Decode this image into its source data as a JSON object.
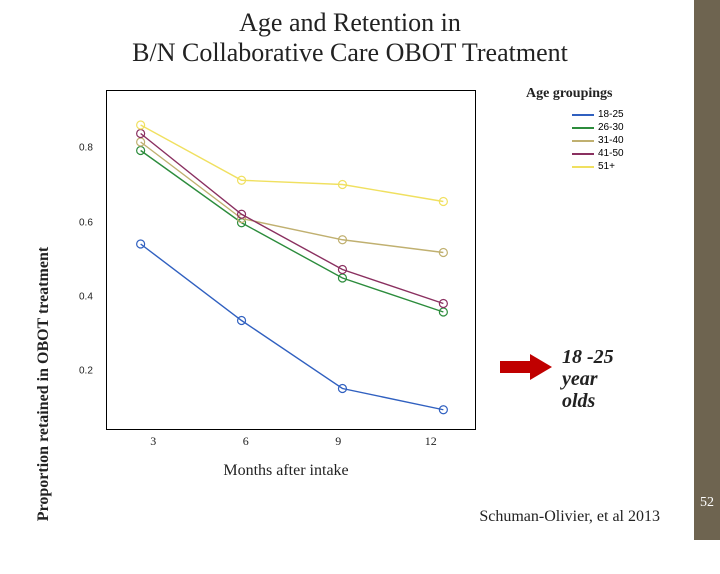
{
  "layout": {
    "accent_bar_color": "#6e6450",
    "page_num_bg": "#6e6450",
    "page_number": "52"
  },
  "title": {
    "line1": "Age and Retention in",
    "line2": "B/N Collaborative Care OBOT Treatment",
    "fontsize": 26
  },
  "chart": {
    "type": "line",
    "y_label": "Proportion retained in OBOT treatment",
    "y_label_fontsize": 16,
    "x_label": "Months after intake",
    "x_label_fontsize": 16,
    "x_ticks": [
      "3",
      "6",
      "9",
      "12"
    ],
    "y_ticks": [
      "0.2",
      "0.4",
      "0.6",
      "0.8"
    ],
    "x_tick_positions": [
      0.125,
      0.375,
      0.625,
      0.875
    ],
    "y_tick_positions": [
      0.823,
      0.605,
      0.387,
      0.168
    ],
    "xlim": [
      2,
      13
    ],
    "ylim": [
      0.12,
      0.92
    ],
    "background_color": "#ffffff",
    "border_color": "#000000",
    "marker": "circle",
    "marker_radius": 4,
    "line_width": 1.4,
    "series": [
      {
        "name": "18-25",
        "color": "#3060c0",
        "x": [
          3,
          6,
          9,
          12
        ],
        "y": [
          0.56,
          0.38,
          0.22,
          0.17
        ]
      },
      {
        "name": "26-30",
        "color": "#2c8c3c",
        "x": [
          3,
          6,
          9,
          12
        ],
        "y": [
          0.78,
          0.61,
          0.48,
          0.4
        ]
      },
      {
        "name": "31-40",
        "color": "#c0b070",
        "x": [
          3,
          6,
          9,
          12
        ],
        "y": [
          0.8,
          0.62,
          0.57,
          0.54
        ]
      },
      {
        "name": "41-50",
        "color": "#8a3060",
        "x": [
          3,
          6,
          9,
          12
        ],
        "y": [
          0.82,
          0.63,
          0.5,
          0.42
        ]
      },
      {
        "name": "51+",
        "color": "#f0e060",
        "x": [
          3,
          6,
          9,
          12
        ],
        "y": [
          0.84,
          0.71,
          0.7,
          0.66
        ]
      }
    ]
  },
  "legend": {
    "title": "Age groupings",
    "title_fontsize": 14,
    "item_fontsize": 10
  },
  "callout": {
    "line1": "18 -25",
    "line2": "year",
    "line3": "olds",
    "fontsize": 20,
    "arrow_color": "#c00000"
  },
  "citation": {
    "text": "Schuman-Olivier, et al 2013",
    "fontsize": 16
  }
}
